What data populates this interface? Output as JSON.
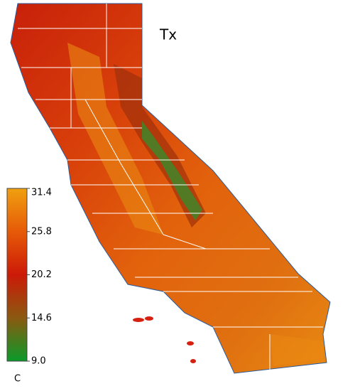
{
  "title": "Tx",
  "colorbar": {
    "lim": [
      9,
      31.4
    ],
    "ticks": [
      31.4,
      25.8,
      20.2,
      14.6,
      {
        "value": 9,
        "label": "9.0"
      }
    ],
    "colors": [
      "#0a9a2a",
      "#8a5a10",
      "#cc1a08",
      "#e65a08",
      "#f0a010"
    ],
    "unit": "C"
  }
}
